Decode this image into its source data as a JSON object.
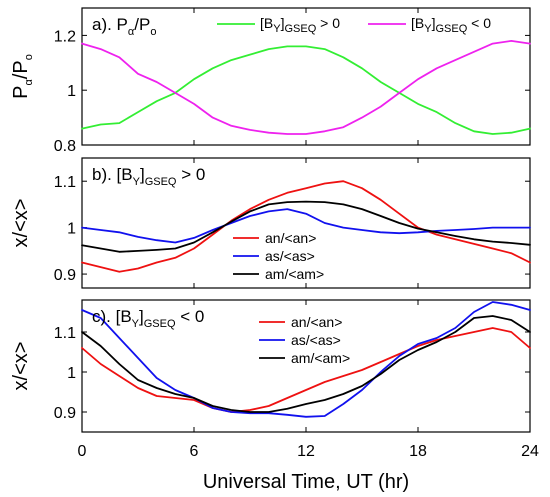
{
  "chart_data": [
    {
      "type": "line",
      "title_main": "a). P",
      "title_sub1": "α",
      "title_mid": "/P",
      "title_sub2": "o",
      "ylabel_main": "P",
      "ylabel_sub1": "α",
      "ylabel_mid": "/P",
      "ylabel_sub2": "o",
      "xlim": [
        0,
        24
      ],
      "ylim": [
        0.8,
        1.3
      ],
      "yticks": [
        0.8,
        1,
        1.2
      ],
      "ytick_labels": [
        "0.8",
        "1",
        "1.2"
      ],
      "xticks": [
        0,
        6,
        12,
        18,
        24
      ],
      "x": [
        0,
        1,
        2,
        3,
        4,
        5,
        6,
        7,
        8,
        9,
        10,
        11,
        12,
        13,
        14,
        15,
        16,
        17,
        18,
        19,
        20,
        21,
        22,
        23,
        24
      ],
      "series": [
        {
          "name": "[B_Y]_GSEQ > 0",
          "name_pre": "[B",
          "name_sub1": "Y",
          "name_mid": "]",
          "name_sub2": "GSEQ",
          "name_post": " > 0",
          "color": "#33ee33",
          "values": [
            0.86,
            0.875,
            0.88,
            0.92,
            0.96,
            0.99,
            1.04,
            1.08,
            1.11,
            1.13,
            1.15,
            1.16,
            1.16,
            1.15,
            1.12,
            1.08,
            1.03,
            0.99,
            0.95,
            0.92,
            0.88,
            0.85,
            0.84,
            0.845,
            0.86
          ]
        },
        {
          "name": "[B_Y]_GSEQ < 0",
          "name_pre": "[B",
          "name_sub1": "Y",
          "name_mid": "]",
          "name_sub2": "GSEQ",
          "name_post": " < 0",
          "color": "#ee22ee",
          "values": [
            1.17,
            1.15,
            1.12,
            1.06,
            1.03,
            0.99,
            0.95,
            0.9,
            0.87,
            0.855,
            0.845,
            0.84,
            0.84,
            0.85,
            0.865,
            0.9,
            0.94,
            0.99,
            1.04,
            1.08,
            1.11,
            1.14,
            1.17,
            1.18,
            1.17
          ]
        }
      ]
    },
    {
      "type": "line",
      "title_main": "b). [B",
      "title_sub1": "Y",
      "title_mid": "]",
      "title_sub2": "GSEQ",
      "title_post": " > 0",
      "ylabel": "x/<x>",
      "xlim": [
        0,
        24
      ],
      "ylim": [
        0.87,
        1.15
      ],
      "yticks": [
        0.9,
        1,
        1.1
      ],
      "ytick_labels": [
        "0.9",
        "1",
        "1.1"
      ],
      "xticks": [
        0,
        6,
        12,
        18,
        24
      ],
      "x": [
        0,
        1,
        2,
        3,
        4,
        5,
        6,
        7,
        8,
        9,
        10,
        11,
        12,
        13,
        14,
        15,
        16,
        17,
        18,
        19,
        20,
        21,
        22,
        23,
        24
      ],
      "series": [
        {
          "name": "an/<an>",
          "color": "#ee1111",
          "values": [
            0.925,
            0.915,
            0.905,
            0.912,
            0.925,
            0.935,
            0.955,
            0.985,
            1.015,
            1.04,
            1.06,
            1.075,
            1.085,
            1.095,
            1.1,
            1.085,
            1.06,
            1.03,
            1.0,
            0.985,
            0.975,
            0.965,
            0.955,
            0.945,
            0.925
          ]
        },
        {
          "name": "as/<as>",
          "color": "#1111ee",
          "values": [
            1.0,
            0.995,
            0.99,
            0.98,
            0.973,
            0.968,
            0.978,
            0.995,
            1.01,
            1.025,
            1.035,
            1.04,
            1.03,
            1.01,
            1.0,
            0.995,
            0.99,
            0.988,
            0.99,
            0.993,
            0.995,
            0.997,
            1.0,
            1.0,
            1.0
          ]
        },
        {
          "name": "am/<am>",
          "color": "#000000",
          "values": [
            0.962,
            0.955,
            0.948,
            0.95,
            0.952,
            0.955,
            0.968,
            0.99,
            1.013,
            1.035,
            1.05,
            1.055,
            1.056,
            1.055,
            1.05,
            1.04,
            1.025,
            1.01,
            0.998,
            0.99,
            0.982,
            0.975,
            0.97,
            0.967,
            0.963
          ]
        }
      ]
    },
    {
      "type": "line",
      "title_main": "c). [B",
      "title_sub1": "Y",
      "title_mid": "]",
      "title_sub2": "GSEQ",
      "title_post": " < 0",
      "ylabel": "x/<x>",
      "xlabel": "Universal Time, UT (hr)",
      "xlim": [
        0,
        24
      ],
      "ylim": [
        0.85,
        1.18
      ],
      "yticks": [
        0.9,
        1,
        1.1
      ],
      "ytick_labels": [
        "0.9",
        "1",
        "1.1"
      ],
      "xticks": [
        0,
        6,
        12,
        18,
        24
      ],
      "xtick_labels": [
        "0",
        "6",
        "12",
        "18",
        "24"
      ],
      "x": [
        0,
        1,
        2,
        3,
        4,
        5,
        6,
        7,
        8,
        9,
        10,
        11,
        12,
        13,
        14,
        15,
        16,
        17,
        18,
        19,
        20,
        21,
        22,
        23,
        24
      ],
      "series": [
        {
          "name": "an/<an>",
          "color": "#ee1111",
          "values": [
            1.06,
            1.02,
            0.99,
            0.96,
            0.94,
            0.935,
            0.93,
            0.91,
            0.9,
            0.905,
            0.915,
            0.935,
            0.955,
            0.975,
            0.99,
            1.005,
            1.025,
            1.045,
            1.065,
            1.08,
            1.09,
            1.1,
            1.11,
            1.1,
            1.06
          ]
        },
        {
          "name": "as/<as>",
          "color": "#1111ee",
          "values": [
            1.155,
            1.135,
            1.085,
            1.035,
            0.985,
            0.955,
            0.935,
            0.91,
            0.9,
            0.897,
            0.897,
            0.893,
            0.888,
            0.89,
            0.92,
            0.955,
            1.0,
            1.04,
            1.07,
            1.085,
            1.11,
            1.15,
            1.175,
            1.168,
            1.155
          ]
        },
        {
          "name": "am/<am>",
          "color": "#000000",
          "values": [
            1.1,
            1.065,
            1.02,
            0.98,
            0.96,
            0.945,
            0.935,
            0.915,
            0.905,
            0.9,
            0.9,
            0.908,
            0.92,
            0.93,
            0.945,
            0.965,
            0.995,
            1.03,
            1.055,
            1.075,
            1.1,
            1.135,
            1.14,
            1.13,
            1.1
          ]
        }
      ]
    }
  ]
}
